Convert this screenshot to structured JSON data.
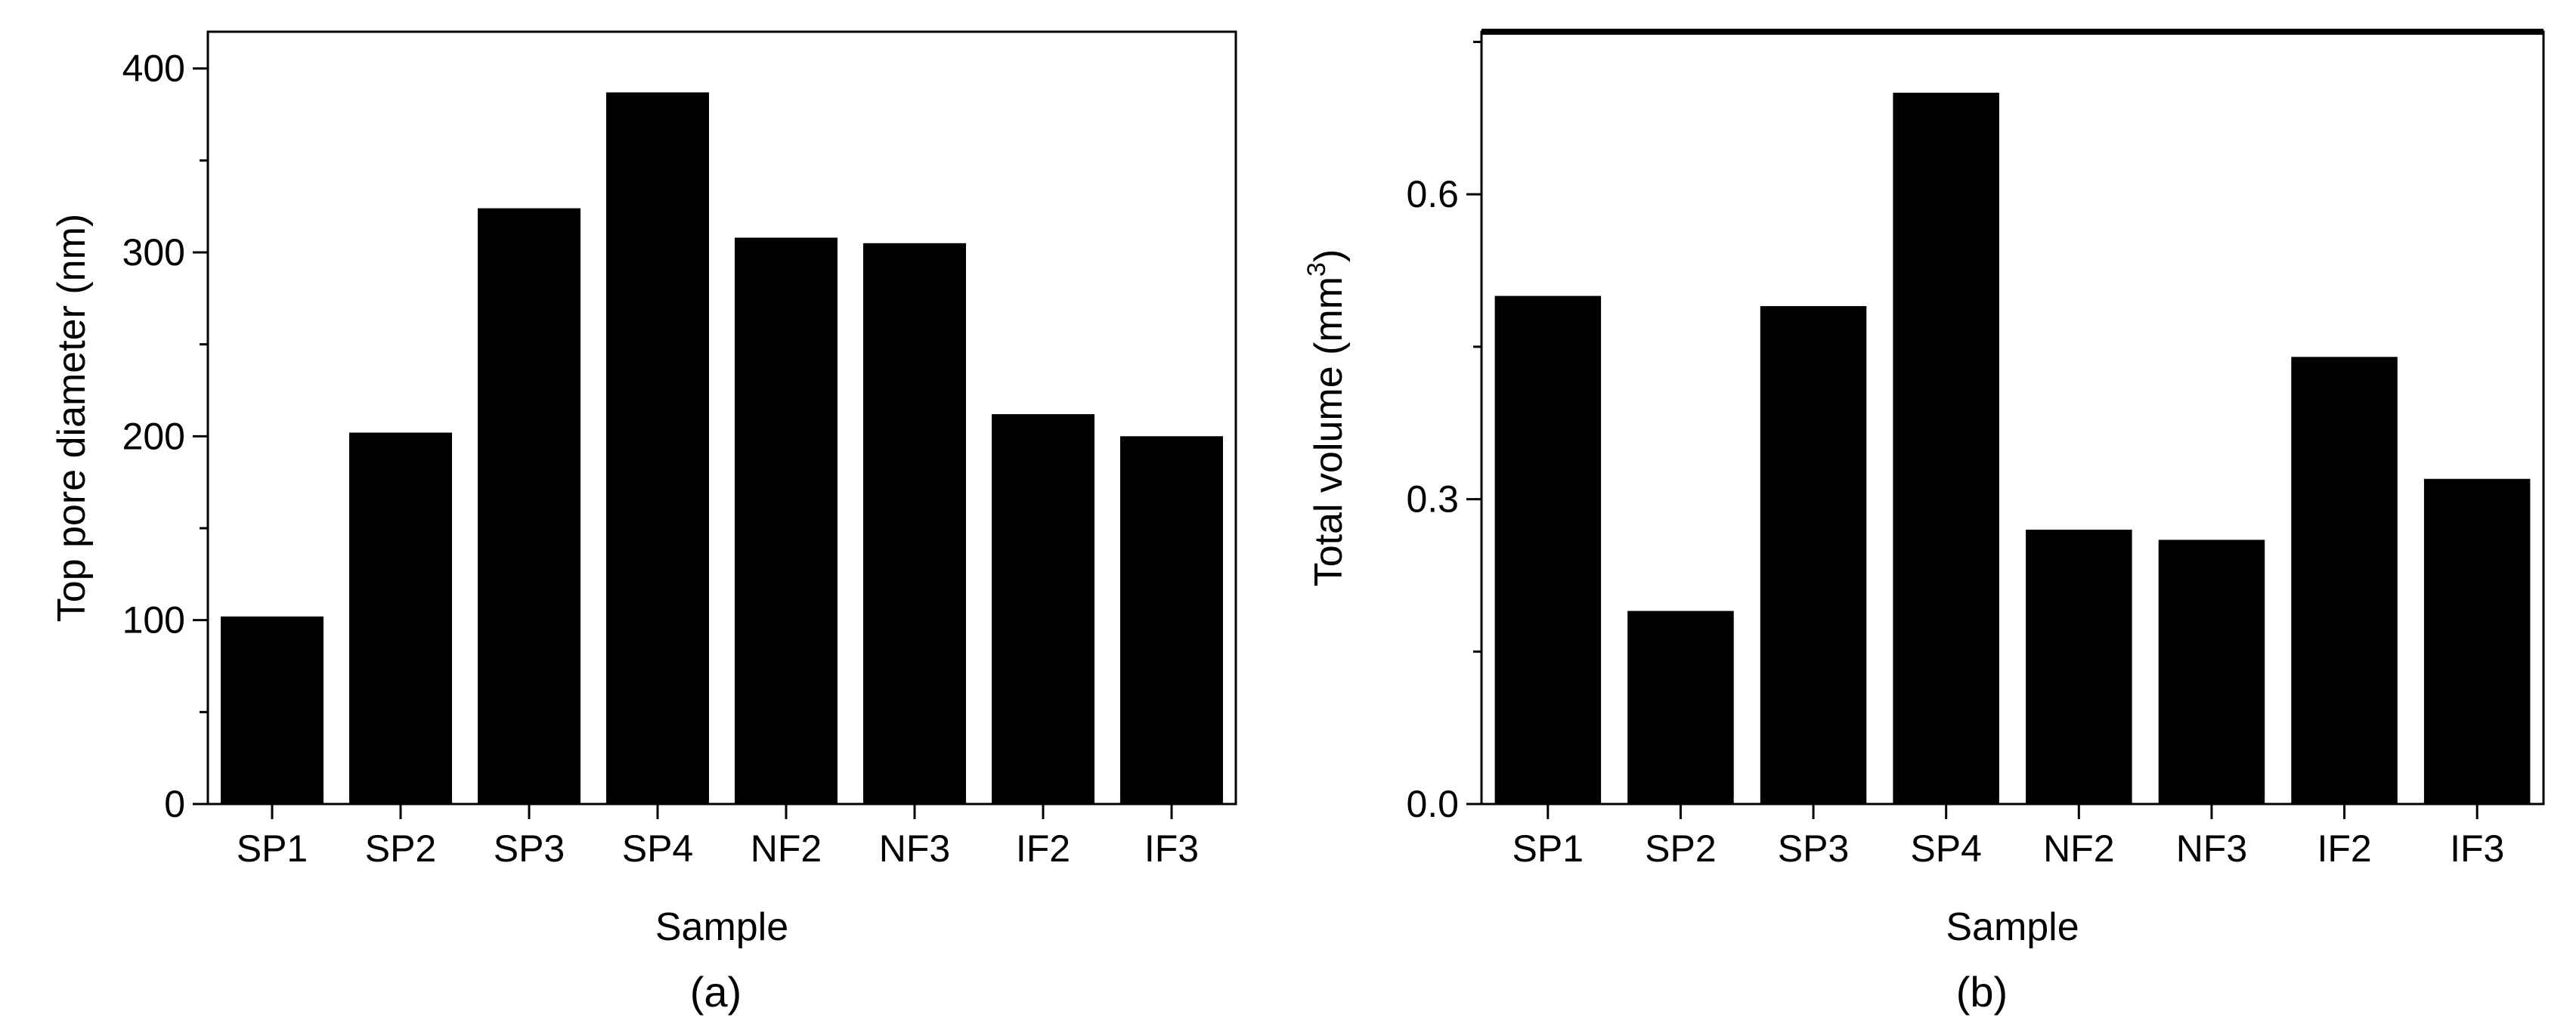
{
  "chart_data": [
    {
      "type": "bar",
      "panel": "(a)",
      "categories": [
        "SP1",
        "SP2",
        "SP3",
        "SP4",
        "NF2",
        "NF3",
        "IF2",
        "IF3"
      ],
      "values": [
        102,
        202,
        324,
        387,
        308,
        305,
        212,
        200
      ],
      "xlabel": "Sample",
      "ylabel": "Top pore diameter (nm)",
      "ylim": [
        0,
        420
      ],
      "yticks": [
        0,
        100,
        200,
        300,
        400
      ],
      "ytick_labels": [
        "0",
        "100",
        "200",
        "300",
        "400"
      ],
      "bar_color": "#000000",
      "grid": false
    },
    {
      "type": "bar",
      "panel": "(b)",
      "categories": [
        "SP1",
        "SP2",
        "SP3",
        "SP4",
        "NF2",
        "NF3",
        "IF2",
        "IF3"
      ],
      "values": [
        0.5,
        0.19,
        0.49,
        0.7,
        0.27,
        0.26,
        0.44,
        0.32
      ],
      "xlabel": "Sample",
      "ylabel": "Total volume (mm",
      "ylabel_superscript": "3",
      "ylabel_suffix": ")",
      "ylim": [
        0,
        0.76
      ],
      "yticks": [
        0.0,
        0.3,
        0.6
      ],
      "ytick_labels": [
        "0.0",
        "0.3",
        "0.6"
      ],
      "bar_color": "#000000",
      "grid": false
    }
  ]
}
